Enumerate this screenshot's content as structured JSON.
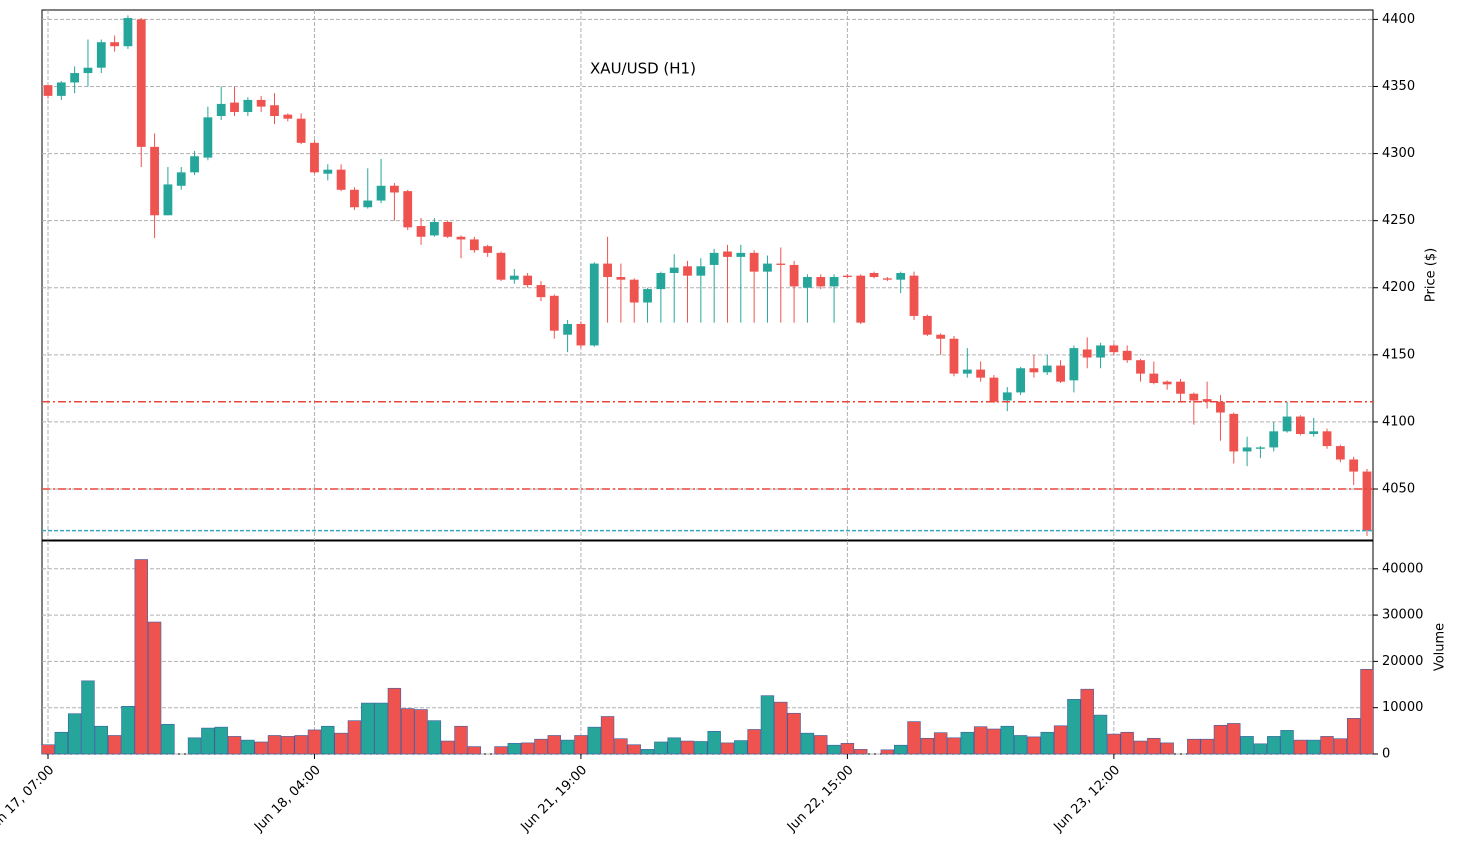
{
  "chart_data": {
    "type": "candlestick",
    "title": "XAU/USD (H1)",
    "ylabel": "Price ($)",
    "volume_label": "Volume",
    "up_color": "#26a69a",
    "down_color": "#ef5350",
    "grid": true,
    "categories": [
      "Jun 17, 07:00",
      null,
      null,
      null,
      null,
      null,
      null,
      null,
      null,
      null,
      null,
      null,
      null,
      null,
      null,
      null,
      null,
      null,
      null,
      null,
      "Jun 18, 04:00",
      null,
      null,
      null,
      null,
      null,
      null,
      null,
      null,
      null,
      null,
      null,
      null,
      null,
      null,
      null,
      null,
      null,
      null,
      null,
      "Jun 21, 19:00",
      null,
      null,
      null,
      null,
      null,
      null,
      null,
      null,
      null,
      null,
      null,
      null,
      null,
      null,
      null,
      null,
      null,
      null,
      null,
      "Jun 22, 15:00",
      null,
      null,
      null,
      null,
      null,
      null,
      null,
      null,
      null,
      null,
      null,
      null,
      null,
      null,
      null,
      null,
      null,
      null,
      null,
      "Jun 23, 12:00",
      null,
      null,
      null,
      null,
      null,
      null,
      null,
      null,
      null,
      null,
      null,
      null,
      null,
      null,
      null,
      null,
      null,
      null,
      null
    ],
    "open": [
      4351,
      4343,
      4353,
      4360,
      4364,
      4383,
      4380,
      4400,
      4305,
      4254,
      4276,
      4286,
      4297,
      4328,
      4338,
      4331,
      4340,
      4336,
      4329,
      4326,
      4308,
      4285,
      4288,
      4273,
      4260,
      4265,
      4276,
      4272,
      4246,
      4239,
      4249,
      4238,
      4236,
      4231,
      4226,
      4206,
      4209,
      4202,
      4194,
      4165,
      4173,
      4157,
      4218,
      4208,
      4206,
      4189,
      4199,
      4211,
      4216,
      4209,
      4217,
      4227,
      4223,
      4226,
      4212,
      4218,
      4217,
      4200,
      4208,
      4201,
      4209,
      4209,
      4211,
      4207,
      4206,
      4209,
      4179,
      4165,
      4162,
      4136,
      4139,
      4133,
      4116,
      4122,
      4140,
      4137,
      4142,
      4131,
      4154,
      4148,
      4157,
      4153,
      4146,
      4136,
      4130,
      4130,
      4121,
      4117,
      4115,
      4106,
      4078,
      4080,
      4081,
      4093,
      4104,
      4091,
      4093,
      4082,
      4072,
      4063
    ],
    "high": [
      4351,
      4354,
      4365,
      4385,
      4385,
      4388,
      4403,
      4401,
      4315,
      4290,
      4290,
      4302,
      4335,
      4350,
      4350,
      4342,
      4343,
      4345,
      4330,
      4330,
      4310,
      4292,
      4292,
      4275,
      4289,
      4296,
      4278,
      4273,
      4252,
      4252,
      4250,
      4239,
      4238,
      4232,
      4227,
      4214,
      4211,
      4205,
      4195,
      4176,
      4175,
      4219,
      4238,
      4218,
      4207,
      4200,
      4212,
      4225,
      4220,
      4222,
      4229,
      4232,
      4232,
      4228,
      4224,
      4230,
      4220,
      4210,
      4210,
      4210,
      4210,
      4210,
      4212,
      4208,
      4212,
      4212,
      4180,
      4166,
      4164,
      4155,
      4145,
      4135,
      4126,
      4141,
      4150,
      4150,
      4146,
      4157,
      4163,
      4159,
      4158,
      4157,
      4147,
      4145,
      4131,
      4132,
      4122,
      4130,
      4120,
      4107,
      4089,
      4082,
      4100,
      4115,
      4105,
      4103,
      4095,
      4083,
      4074,
      4065
    ],
    "low": [
      4341,
      4340,
      4345,
      4350,
      4360,
      4376,
      4378,
      4290,
      4237,
      4254,
      4273,
      4284,
      4295,
      4325,
      4328,
      4328,
      4331,
      4322,
      4324,
      4307,
      4285,
      4280,
      4272,
      4258,
      4259,
      4263,
      4250,
      4243,
      4232,
      4238,
      4237,
      4222,
      4226,
      4223,
      4205,
      4203,
      4200,
      4190,
      4162,
      4152,
      4155,
      4156,
      4174,
      4174,
      4174,
      4174,
      4174,
      4174,
      4174,
      4174,
      4174,
      4174,
      4174,
      4174,
      4174,
      4174,
      4174,
      4174,
      4199,
      4174,
      4207,
      4173,
      4207,
      4205,
      4196,
      4176,
      4164,
      4150,
      4134,
      4133,
      4130,
      4114,
      4108,
      4120,
      4133,
      4135,
      4129,
      4122,
      4140,
      4140,
      4150,
      4144,
      4130,
      4128,
      4124,
      4115,
      4098,
      4110,
      4086,
      4069,
      4067,
      4073,
      4078,
      4092,
      4090,
      4089,
      4080,
      4070,
      4053,
      4015
    ],
    "close": [
      4343,
      4353,
      4360,
      4364,
      4383,
      4380,
      4401,
      4305,
      4254,
      4277,
      4286,
      4298,
      4327,
      4337,
      4331,
      4340,
      4335,
      4328,
      4326,
      4308,
      4286,
      4288,
      4273,
      4260,
      4265,
      4276,
      4271,
      4245,
      4238,
      4249,
      4238,
      4236,
      4228,
      4226,
      4206,
      4209,
      4202,
      4193,
      4168,
      4173,
      4157,
      4218,
      4208,
      4206,
      4189,
      4199,
      4211,
      4215,
      4209,
      4216,
      4226,
      4223,
      4226,
      4212,
      4218,
      4217,
      4201,
      4208,
      4201,
      4208,
      4208,
      4174,
      4208,
      4206,
      4211,
      4179,
      4165,
      4162,
      4136,
      4139,
      4133,
      4115,
      4122,
      4140,
      4137,
      4142,
      4130,
      4155,
      4148,
      4157,
      4152,
      4146,
      4136,
      4129,
      4128,
      4121,
      4116,
      4115,
      4107,
      4078,
      4081,
      4081,
      4093,
      4104,
      4091,
      4093,
      4082,
      4072,
      4063,
      4019
    ],
    "volume": [
      2000,
      4700,
      8700,
      15800,
      6000,
      4000,
      10300,
      42000,
      28500,
      6400,
      0,
      3500,
      5600,
      5800,
      3800,
      3000,
      2600,
      4000,
      3800,
      4000,
      5200,
      6000,
      4500,
      7200,
      11000,
      11000,
      14200,
      9800,
      9600,
      7200,
      2800,
      6000,
      1600,
      0,
      1600,
      2300,
      2400,
      3200,
      4000,
      3000,
      4000,
      5800,
      8100,
      3300,
      2000,
      1000,
      2600,
      3500,
      2800,
      2700,
      4900,
      2400,
      2900,
      5300,
      12600,
      11200,
      8800,
      4500,
      4000,
      1900,
      2300,
      1000,
      0,
      900,
      1900,
      7000,
      3400,
      4600,
      3500,
      4700,
      5900,
      5400,
      6000,
      4000,
      3700,
      4700,
      6100,
      11800,
      14000,
      8400,
      4300,
      4700,
      2800,
      3400,
      2400,
      0,
      3200,
      3200,
      6200,
      6600,
      3800,
      2200,
      3800,
      5100,
      3000,
      3000,
      3800,
      3300,
      7700,
      18300
    ],
    "xlim": [
      -0.45,
      99.45
    ],
    "ylim": [
      4012,
      4407
    ],
    "yticks": [
      4050,
      4100,
      4150,
      4200,
      4250,
      4300,
      4350,
      4400
    ],
    "volume_ylim": [
      0,
      46000
    ],
    "volume_ticks": [
      0,
      10000,
      20000,
      30000,
      40000
    ],
    "hlines": [
      {
        "value": 4115,
        "color": "#e8463c",
        "style": "dashdot"
      },
      {
        "value": 4050,
        "color": "#e8463c",
        "style": "dashdot"
      },
      {
        "value": 4019,
        "color": "#3aa6c0",
        "style": "dashed"
      }
    ]
  }
}
